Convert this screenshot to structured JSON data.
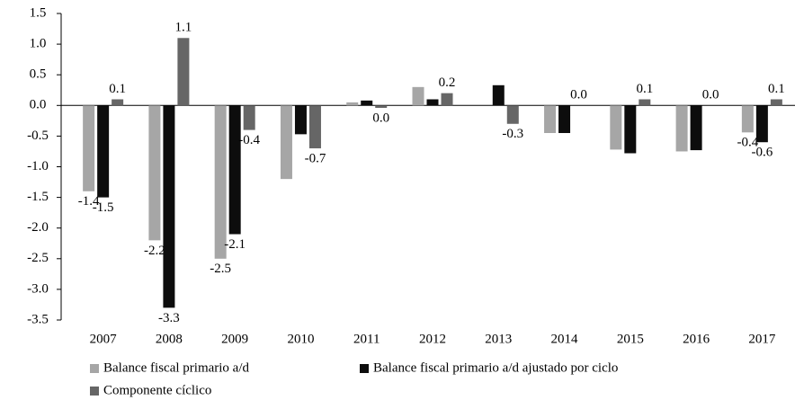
{
  "chart_data": {
    "type": "bar",
    "categories": [
      "2007",
      "2008",
      "2009",
      "2010",
      "2011",
      "2012",
      "2013",
      "2014",
      "2015",
      "2016",
      "2017"
    ],
    "series": [
      {
        "name": "Balance fiscal primario a/d",
        "color": "#a6a6a6",
        "values": [
          -1.4,
          -2.2,
          -2.5,
          -1.2,
          0.05,
          0.3,
          0,
          -0.45,
          -0.72,
          -0.75,
          -0.44
        ],
        "value_labels": [
          "-1.4",
          "-2.2",
          "-2.5",
          null,
          null,
          null,
          null,
          null,
          null,
          null,
          "-0.4"
        ]
      },
      {
        "name": "Balance fiscal primario a/d ajustado por ciclo",
        "color": "#0d0d0d",
        "values": [
          -1.5,
          -3.3,
          -2.1,
          -0.47,
          0.08,
          0.1,
          0.33,
          -0.45,
          -0.78,
          -0.73,
          -0.6
        ],
        "value_labels": [
          "-1.5",
          "-3.3",
          "-2.1",
          null,
          null,
          null,
          null,
          null,
          null,
          null,
          "-0.6"
        ]
      },
      {
        "name": "Componente cíclico",
        "color": "#666666",
        "values": [
          0.1,
          1.1,
          -0.4,
          -0.7,
          -0.04,
          0.2,
          -0.3,
          0,
          0.1,
          0,
          0.1
        ],
        "value_labels": [
          "0.1",
          "1.1",
          "-0.4",
          "-0.7",
          "0.0",
          "0.2",
          "-0.3",
          "0.0",
          "0.1",
          "0.0",
          "0.1"
        ]
      }
    ],
    "ylim": [
      -3.5,
      1.5
    ],
    "yticks": [
      1.5,
      {
        "value": 1,
        "label": "1.0"
      },
      0.5,
      {
        "value": 0,
        "label": "0.0"
      },
      -0.5,
      {
        "value": -1,
        "label": "-1.0"
      },
      -1.5,
      {
        "value": -2,
        "label": "-2.0"
      },
      -2.5,
      {
        "value": -3,
        "label": "-3.0"
      },
      -3.5
    ],
    "legend": "bottom"
  }
}
